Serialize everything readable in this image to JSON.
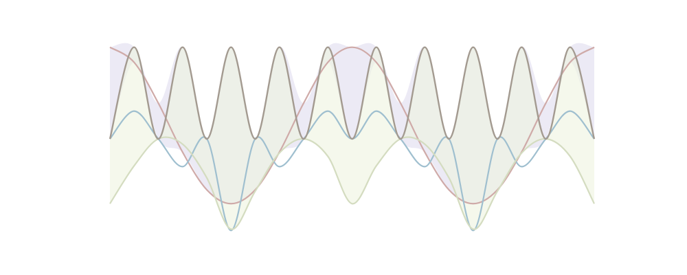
{
  "chart_data": {
    "type": "line",
    "title": "",
    "xlabel": "",
    "ylabel": "",
    "xlim": [
      0,
      6.283
    ],
    "ylim": [
      -1.05,
      1.05
    ],
    "grid": false,
    "axes_visible": false,
    "legend": "none",
    "x": [
      0.0,
      0.314,
      0.628,
      0.942,
      1.257,
      1.571,
      1.885,
      2.199,
      2.513,
      2.827,
      3.142,
      3.456,
      3.77,
      4.084,
      4.398,
      4.712,
      5.027,
      5.341,
      5.655,
      5.969,
      6.283
    ],
    "series": [
      {
        "color": "#cfaaa8",
        "values": [
          1.0,
          0.835,
          0.39,
          -0.144,
          -0.556,
          -0.707,
          -0.556,
          -0.144,
          0.39,
          0.835,
          1.0,
          0.835,
          0.39,
          -0.144,
          -0.556,
          -0.707,
          -0.556,
          -0.144,
          0.39,
          0.835,
          1.0
        ]
      },
      {
        "color": "#9fbfcf",
        "values": [
          0.0,
          0.303,
          0.0,
          -0.303,
          0.0,
          -1.0,
          0.0,
          -0.303,
          0.0,
          0.303,
          0.0,
          0.303,
          0.0,
          -0.303,
          0.0,
          -1.0,
          0.0,
          -0.303,
          0.0,
          0.303,
          0.0
        ]
      },
      {
        "color": "#d4dcc0",
        "values": [
          -0.707,
          -0.294,
          0.0,
          -0.057,
          -0.425,
          -0.985,
          -0.57,
          -0.154,
          0.0,
          -0.19,
          -0.707,
          -0.294,
          0.0,
          -0.057,
          -0.425,
          -0.985,
          -0.57,
          -0.154,
          0.0,
          -0.19,
          -0.707
        ]
      },
      {
        "color": "#a39a90",
        "values": [
          0.0,
          1.0,
          0.0,
          1.0,
          0.0,
          1.0,
          0.0,
          1.0,
          0.0,
          1.0,
          0.0,
          1.0,
          0.0,
          1.0,
          0.0,
          1.0,
          0.0,
          1.0,
          0.0,
          1.0,
          0.0
        ]
      }
    ],
    "fill_colors": {
      "between_above": "#dcd8ec",
      "between_below": "#eef3e0"
    }
  }
}
